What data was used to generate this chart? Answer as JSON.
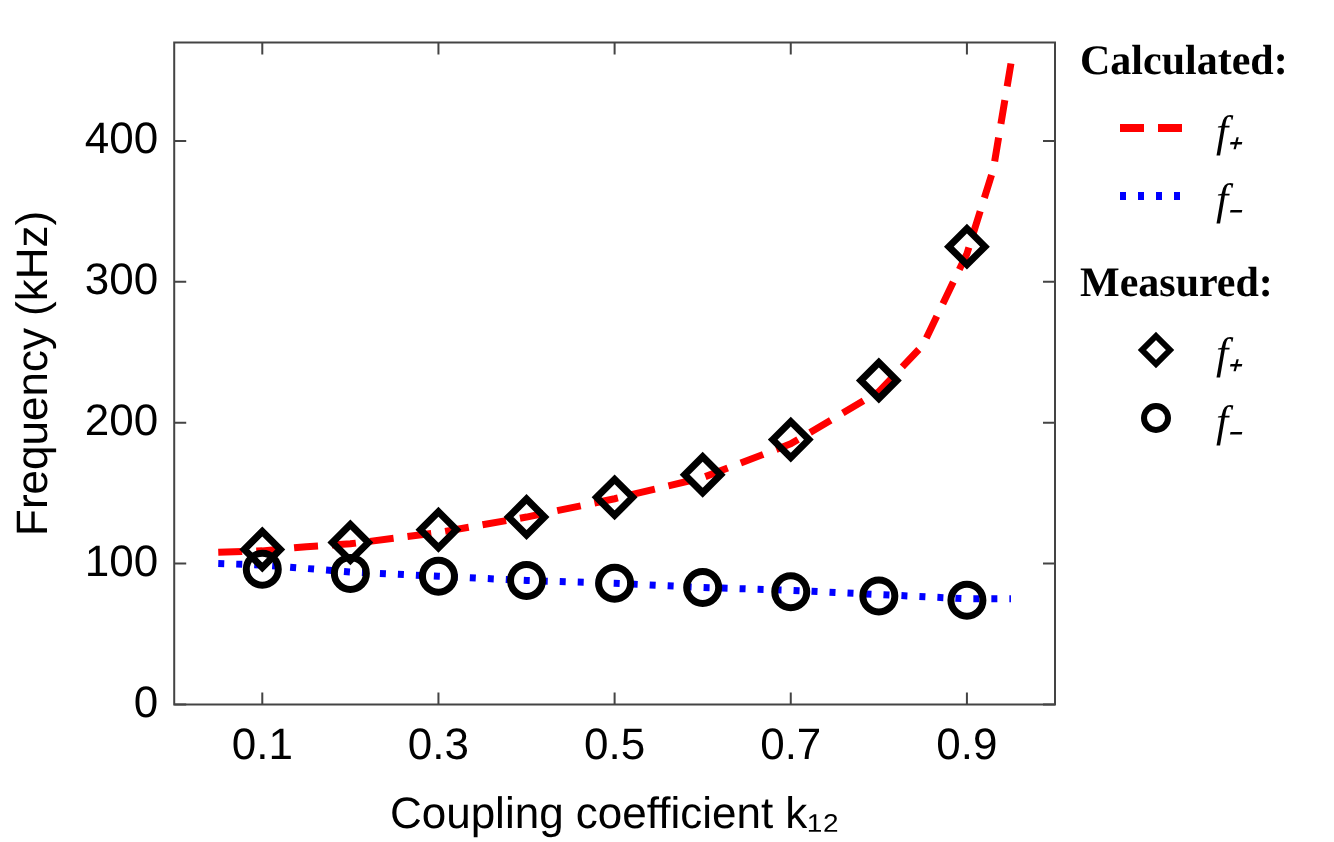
{
  "chart_data": {
    "type": "line",
    "xlabel": "Coupling coefficient k₁₂",
    "ylabel": "Frequency (kHz)",
    "xlim": [
      0,
      1
    ],
    "xticks": [
      0.1,
      0.3,
      0.5,
      0.7,
      0.9
    ],
    "ylim": [
      0,
      470
    ],
    "yticks": [
      0,
      100,
      200,
      300,
      400
    ],
    "grid": false,
    "legend": "right",
    "annotations": [
      "Calculated:",
      "Measured:"
    ],
    "series": [
      {
        "name": "f₊",
        "type": "line",
        "line_style": "dashed",
        "marker": "none",
        "color": "#ff0000",
        "x": [
          0.05,
          0.1,
          0.15,
          0.2,
          0.3,
          0.4,
          0.5,
          0.6,
          0.7,
          0.8,
          0.85,
          0.9,
          0.93,
          0.95
        ],
        "values": [
          108,
          109,
          112,
          114,
          122,
          133,
          146,
          161,
          185,
          222,
          255,
          320,
          380,
          455
        ]
      },
      {
        "name": "f₋",
        "type": "line",
        "line_style": "dotted",
        "marker": "none",
        "color": "#0000ff",
        "x": [
          0.05,
          0.1,
          0.2,
          0.3,
          0.4,
          0.5,
          0.6,
          0.7,
          0.8,
          0.9,
          0.95
        ],
        "values": [
          100,
          99,
          94,
          91,
          88,
          86,
          83,
          81,
          78,
          75,
          75
        ]
      },
      {
        "name": "f₊",
        "type": "scatter",
        "marker": "diamond",
        "color": "#000000",
        "x": [
          0.1,
          0.2,
          0.3,
          0.4,
          0.5,
          0.6,
          0.7,
          0.8,
          0.9
        ],
        "values": [
          110,
          115,
          124,
          133,
          147,
          163,
          188,
          230,
          325
        ]
      },
      {
        "name": "f₋",
        "type": "scatter",
        "marker": "circle",
        "color": "#000000",
        "x": [
          0.1,
          0.2,
          0.3,
          0.4,
          0.5,
          0.6,
          0.7,
          0.8,
          0.9
        ],
        "values": [
          96,
          93,
          91,
          88,
          86,
          83,
          80,
          77,
          74
        ]
      }
    ]
  }
}
